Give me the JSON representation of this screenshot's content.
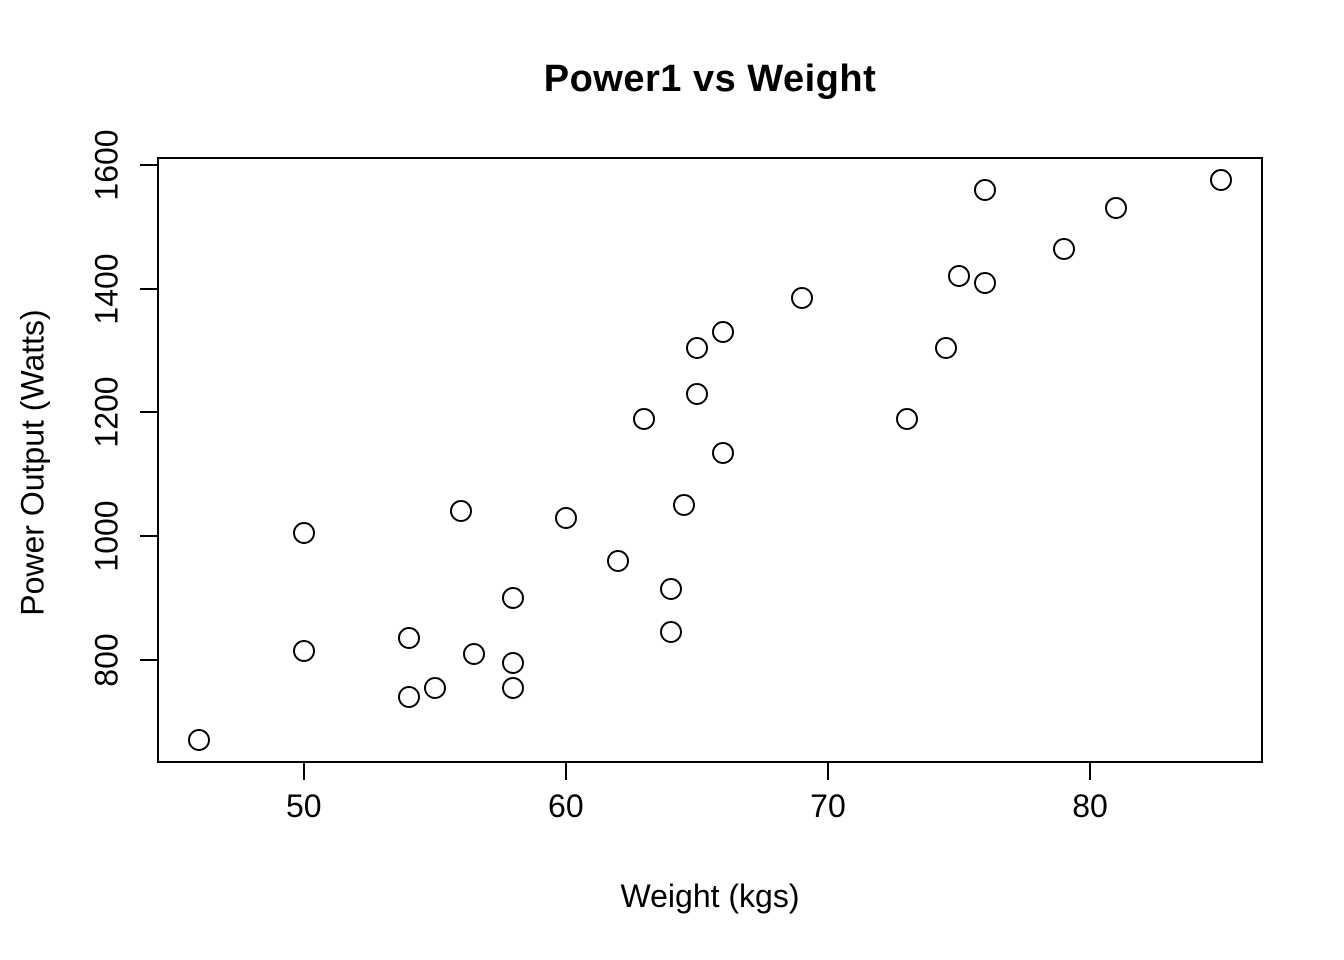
{
  "chart_data": {
    "type": "scatter",
    "title": "Power1 vs Weight",
    "xlabel": "Weight (kgs)",
    "ylabel": "Power Output (Watts)",
    "marker": "open-circle",
    "marker_color": "#000000",
    "background_color": "#ffffff",
    "grid": false,
    "legend": false,
    "xlim": [
      44.4,
      86.6
    ],
    "ylim": [
      633.5,
      1612.9
    ],
    "x_ticks": [
      50,
      60,
      70,
      80
    ],
    "y_ticks": [
      800,
      1000,
      1200,
      1400,
      1600
    ],
    "points": [
      {
        "x": 46,
        "y": 670
      },
      {
        "x": 50,
        "y": 1005
      },
      {
        "x": 50,
        "y": 815
      },
      {
        "x": 54,
        "y": 835
      },
      {
        "x": 54,
        "y": 740
      },
      {
        "x": 55,
        "y": 755
      },
      {
        "x": 56,
        "y": 1040
      },
      {
        "x": 56.5,
        "y": 810
      },
      {
        "x": 58,
        "y": 900
      },
      {
        "x": 58,
        "y": 795
      },
      {
        "x": 58,
        "y": 755
      },
      {
        "x": 60,
        "y": 1030
      },
      {
        "x": 62,
        "y": 960
      },
      {
        "x": 63,
        "y": 1190
      },
      {
        "x": 64,
        "y": 915
      },
      {
        "x": 64,
        "y": 845
      },
      {
        "x": 64.5,
        "y": 1050
      },
      {
        "x": 65,
        "y": 1230
      },
      {
        "x": 65,
        "y": 1305
      },
      {
        "x": 66,
        "y": 1330
      },
      {
        "x": 66,
        "y": 1135
      },
      {
        "x": 69,
        "y": 1385
      },
      {
        "x": 73,
        "y": 1190
      },
      {
        "x": 74.5,
        "y": 1305
      },
      {
        "x": 75,
        "y": 1420
      },
      {
        "x": 76,
        "y": 1410
      },
      {
        "x": 76,
        "y": 1560
      },
      {
        "x": 79,
        "y": 1465
      },
      {
        "x": 81,
        "y": 1530
      },
      {
        "x": 85,
        "y": 1575
      }
    ]
  }
}
